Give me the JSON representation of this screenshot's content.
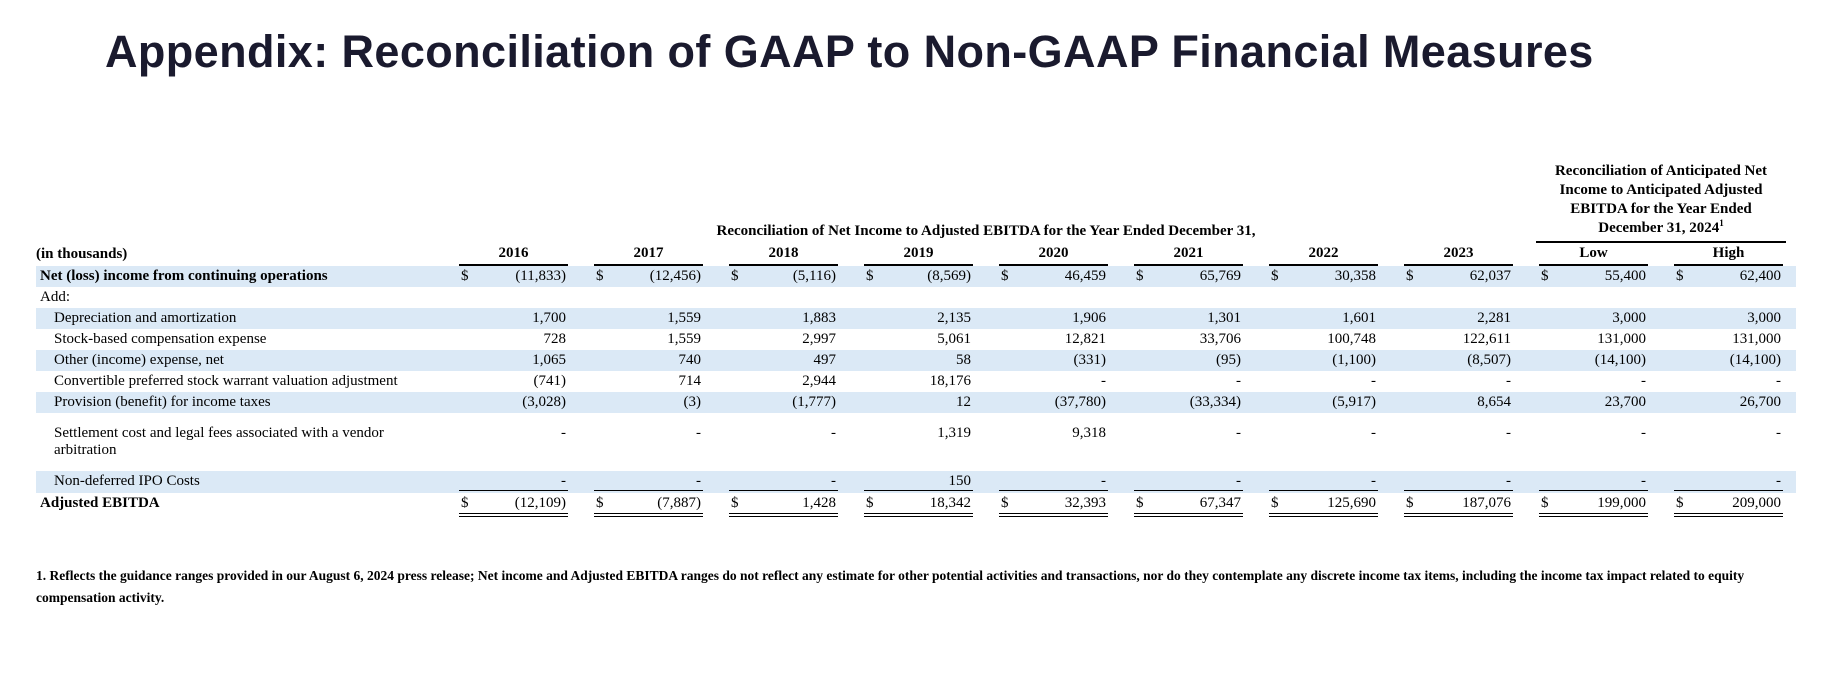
{
  "page": {
    "title": "Appendix: Reconciliation of GAAP to Non-GAAP Financial Measures"
  },
  "colors": {
    "stripe": "#dbe9f6",
    "title_text": "#1a1a2e"
  },
  "table": {
    "units_label": "(in thousands)",
    "group_header_left": "Reconciliation of Net Income to Adjusted EBITDA for the Year Ended December 31,",
    "group_header_right": "Reconciliation of Anticipated Net Income to Anticipated Adjusted EBITDA for the Year Ended December 31, 2024",
    "group_header_right_superscript": "1",
    "columns": [
      "2016",
      "2017",
      "2018",
      "2019",
      "2020",
      "2021",
      "2022",
      "2023",
      "Low",
      "High"
    ],
    "rows": [
      {
        "label": "Net (loss) income from continuing operations",
        "bold": true,
        "indent": false,
        "stripe": true,
        "dollar": true,
        "tall": false,
        "rule": "",
        "values": [
          "(11,833)",
          "(12,456)",
          "(5,116)",
          "(8,569)",
          "46,459",
          "65,769",
          "30,358",
          "62,037",
          "55,400",
          "62,400"
        ]
      },
      {
        "label": "Add:",
        "bold": false,
        "indent": false,
        "stripe": false,
        "dollar": false,
        "tall": false,
        "rule": "",
        "values": [
          "",
          "",
          "",
          "",
          "",
          "",
          "",
          "",
          "",
          ""
        ]
      },
      {
        "label": "Depreciation and amortization",
        "bold": false,
        "indent": true,
        "stripe": true,
        "dollar": false,
        "tall": false,
        "rule": "",
        "values": [
          "1,700",
          "1,559",
          "1,883",
          "2,135",
          "1,906",
          "1,301",
          "1,601",
          "2,281",
          "3,000",
          "3,000"
        ]
      },
      {
        "label": "Stock-based compensation expense",
        "bold": false,
        "indent": true,
        "stripe": false,
        "dollar": false,
        "tall": false,
        "rule": "",
        "values": [
          "728",
          "1,559",
          "2,997",
          "5,061",
          "12,821",
          "33,706",
          "100,748",
          "122,611",
          "131,000",
          "131,000"
        ]
      },
      {
        "label": "Other (income) expense, net",
        "bold": false,
        "indent": true,
        "stripe": true,
        "dollar": false,
        "tall": false,
        "rule": "",
        "values": [
          "1,065",
          "740",
          "497",
          "58",
          "(331)",
          "(95)",
          "(1,100)",
          "(8,507)",
          "(14,100)",
          "(14,100)"
        ]
      },
      {
        "label": "Convertible preferred stock warrant valuation adjustment",
        "bold": false,
        "indent": true,
        "stripe": false,
        "dollar": false,
        "tall": false,
        "rule": "",
        "values": [
          "(741)",
          "714",
          "2,944",
          "18,176",
          "-",
          "-",
          "-",
          "-",
          "-",
          "-"
        ]
      },
      {
        "label": "Provision (benefit) for income taxes",
        "bold": false,
        "indent": true,
        "stripe": true,
        "dollar": false,
        "tall": false,
        "rule": "",
        "values": [
          "(3,028)",
          "(3)",
          "(1,777)",
          "12",
          "(37,780)",
          "(33,334)",
          "(5,917)",
          "8,654",
          "23,700",
          "26,700"
        ]
      },
      {
        "label": "Settlement cost and legal fees associated with a vendor arbitration",
        "bold": false,
        "indent": true,
        "stripe": false,
        "dollar": false,
        "tall": true,
        "rule": "",
        "values": [
          "-",
          "-",
          "-",
          "1,319",
          "9,318",
          "-",
          "-",
          "-",
          "-",
          "-"
        ]
      },
      {
        "label": "Non-deferred IPO Costs",
        "bold": false,
        "indent": true,
        "stripe": true,
        "dollar": false,
        "tall": false,
        "rule": "single",
        "values": [
          "-",
          "-",
          "-",
          "150",
          "-",
          "-",
          "-",
          "-",
          "-",
          "-"
        ]
      },
      {
        "label": "Adjusted EBITDA",
        "bold": true,
        "indent": false,
        "stripe": false,
        "dollar": true,
        "tall": false,
        "rule": "double",
        "values": [
          "(12,109)",
          "(7,887)",
          "1,428",
          "18,342",
          "32,393",
          "67,347",
          "125,690",
          "187,076",
          "199,000",
          "209,000"
        ]
      }
    ]
  },
  "footnote": "1. Reflects the guidance ranges provided in our August 6, 2024 press release; Net income and Adjusted EBITDA ranges do not reflect any estimate for other potential activities and transactions, nor do they contemplate any discrete income tax items, including the income tax impact related to equity compensation activity."
}
